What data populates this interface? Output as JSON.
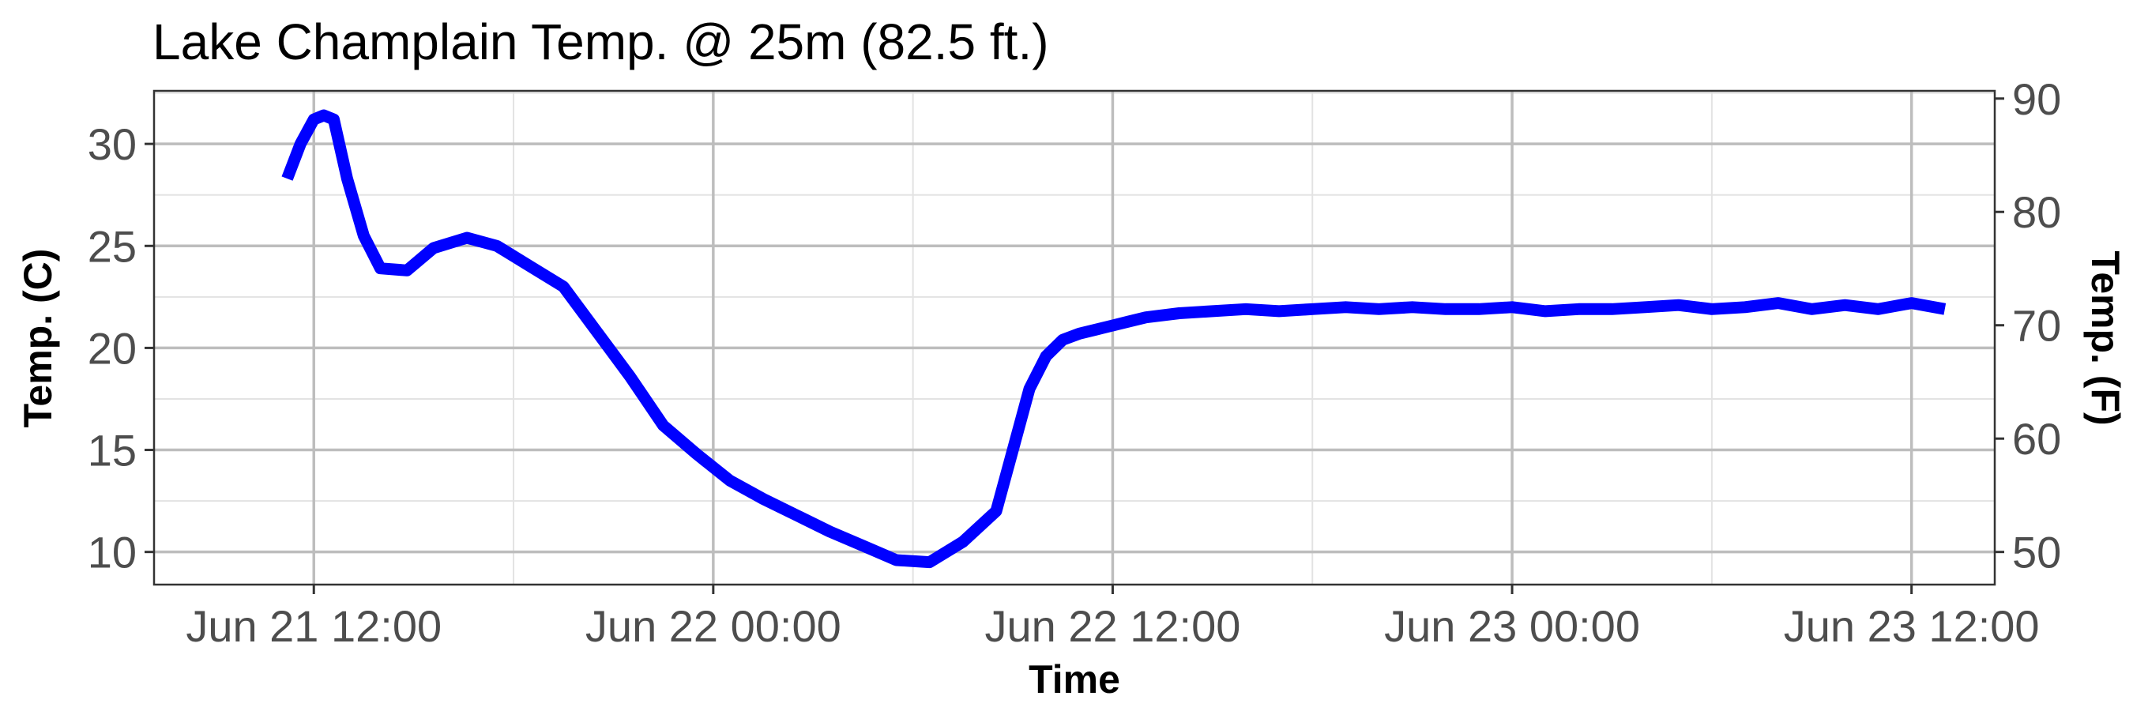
{
  "chart_data": {
    "type": "line",
    "title": "Lake Champlain Temp. @ 25m (82.5 ft.)",
    "xlabel": "Time",
    "ylabel": "Temp. (C)",
    "y2label": "Temp. (F)",
    "x_ticks": [
      "Jun 21 12:00",
      "Jun 22 00:00",
      "Jun 22 12:00",
      "Jun 23 00:00",
      "Jun 23 12:00"
    ],
    "x_tick_hours": [
      0,
      12,
      24,
      36,
      48
    ],
    "xlim_hours": [
      -4.8,
      50.5
    ],
    "y_ticks": [
      10,
      15,
      20,
      25,
      30
    ],
    "ylim": [
      8.4,
      32.6
    ],
    "y2_ticks": [
      50,
      60,
      70,
      80,
      90
    ],
    "grid": true,
    "line_color": "#0000ff",
    "series": [
      {
        "x_hours": [
          -0.8,
          -0.4,
          0,
          0.3,
          0.6,
          1.0,
          1.5,
          2.0,
          2.8,
          3.6,
          4.6,
          5.5,
          6.5,
          7.5,
          8.5,
          9.5,
          10.5,
          11.5,
          12.5,
          13.5,
          14.5,
          15.5,
          16.5,
          17.5,
          18.5,
          19.5,
          20.5,
          21.0,
          21.5,
          22.0,
          22.5,
          23.0,
          23.5,
          24.0,
          24.5,
          25.0,
          26.0,
          27.0,
          28.0,
          29.0,
          30.0,
          31.0,
          32.0,
          33.0,
          34.0,
          35.0,
          36.0,
          37.0,
          38.0,
          39.0,
          40.0,
          41.0,
          42.0,
          43.0,
          44.0,
          45.0,
          46.0,
          47.0,
          48.0,
          49.0
        ],
        "values": [
          28.3,
          30.0,
          31.2,
          31.4,
          31.2,
          28.3,
          25.5,
          23.9,
          23.8,
          24.9,
          25.4,
          25.0,
          24.0,
          23.0,
          20.8,
          18.6,
          16.2,
          14.8,
          13.5,
          12.6,
          11.8,
          11.0,
          10.3,
          9.6,
          9.5,
          10.5,
          12.0,
          15.0,
          18.0,
          19.6,
          20.4,
          20.7,
          20.9,
          21.1,
          21.3,
          21.5,
          21.7,
          21.8,
          21.9,
          21.8,
          21.9,
          22.0,
          21.9,
          22.0,
          21.9,
          21.9,
          22.0,
          21.8,
          21.9,
          21.9,
          22.0,
          22.1,
          21.9,
          22.0,
          22.2,
          21.9,
          22.1,
          21.9,
          22.2,
          21.9
        ]
      }
    ]
  }
}
